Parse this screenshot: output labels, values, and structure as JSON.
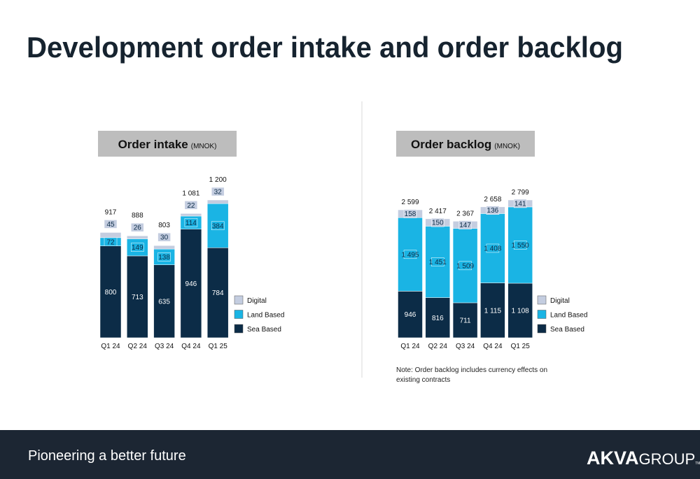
{
  "title": "Development order intake and order backlog",
  "footer": "Pioneering a better future",
  "logo": {
    "bold": "AKVA",
    "light": "GROUP",
    "mark": "TM"
  },
  "note": [
    "Note: Order backlog includes currency effects on",
    "existing contracts"
  ],
  "chart_data": [
    {
      "type": "stacked-bar",
      "title": "Order intake",
      "unit": "(MNOK)",
      "categories": [
        "Q1 24",
        "Q2 24",
        "Q3 24",
        "Q4 24",
        "Q1 25"
      ],
      "series": [
        {
          "name": "Sea Based",
          "color": "#0c2c47",
          "values": [
            800,
            713,
            635,
            946,
            784
          ]
        },
        {
          "name": "Land Based",
          "color": "#1ab4e4",
          "values": [
            72,
            149,
            138,
            114,
            384
          ]
        },
        {
          "name": "Digital",
          "color": "#c4cde0",
          "values": [
            45,
            26,
            30,
            22,
            32
          ]
        }
      ],
      "totals": [
        917,
        888,
        803,
        1081,
        1200
      ],
      "total_labels": [
        "917",
        "888",
        "803",
        "1 081",
        "1 200"
      ]
    },
    {
      "type": "stacked-bar",
      "title": "Order backlog",
      "unit": "(MNOK)",
      "categories": [
        "Q1 24",
        "Q2 24",
        "Q3 24",
        "Q4 24",
        "Q1 25"
      ],
      "series": [
        {
          "name": "Sea Based",
          "color": "#0c2c47",
          "values": [
            946,
            816,
            711,
            1115,
            1108
          ],
          "value_labels": [
            "946",
            "816",
            "711",
            "1 115",
            "1 108"
          ]
        },
        {
          "name": "Land Based",
          "color": "#1ab4e4",
          "values": [
            1495,
            1451,
            1509,
            1408,
            1550
          ],
          "value_labels": [
            "1 495",
            "1 451",
            "1 509",
            "1 408",
            "1 550"
          ]
        },
        {
          "name": "Digital",
          "color": "#c4cde0",
          "values": [
            158,
            150,
            147,
            136,
            141
          ]
        }
      ],
      "totals": [
        2599,
        2417,
        2367,
        2658,
        2799
      ],
      "total_labels": [
        "2 599",
        "2 417",
        "2 367",
        "2 658",
        "2 799"
      ]
    }
  ]
}
